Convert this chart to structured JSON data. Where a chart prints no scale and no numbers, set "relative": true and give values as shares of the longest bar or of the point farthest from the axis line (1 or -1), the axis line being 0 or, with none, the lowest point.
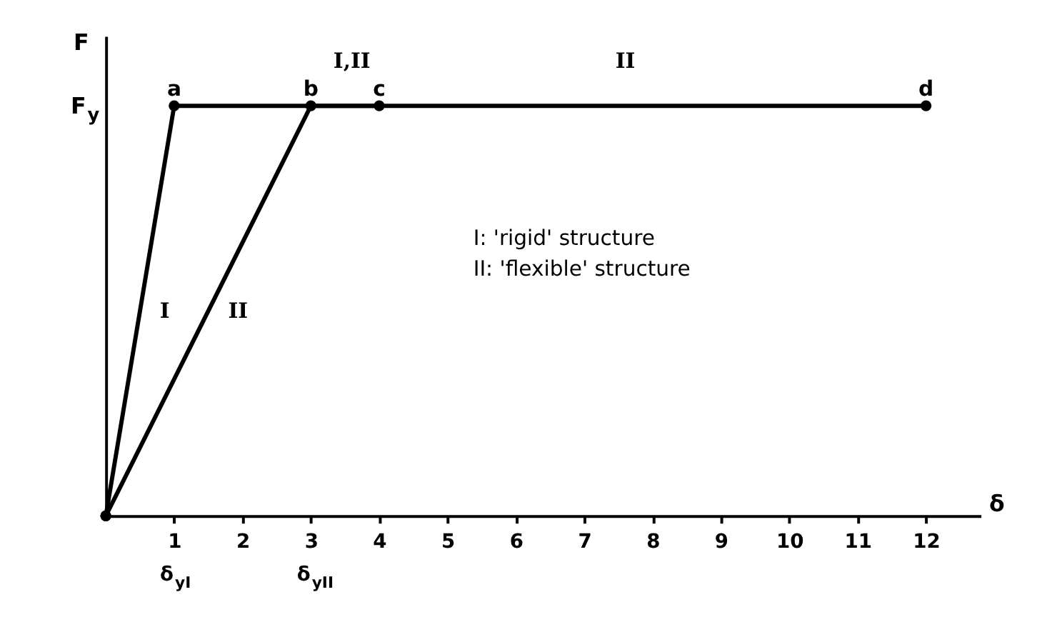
{
  "chart_data": {
    "type": "line",
    "relative": true,
    "xlabel": "δ",
    "ylabel": "F",
    "xlim": [
      0,
      12.8
    ],
    "xticks": [
      1,
      2,
      3,
      4,
      5,
      6,
      7,
      8,
      9,
      10,
      11,
      12
    ],
    "marker": "circle",
    "line_style": "solid",
    "series": [
      {
        "name": "I",
        "color": "#000000",
        "x": [
          0,
          1,
          4
        ],
        "values": [
          0,
          1,
          1
        ]
      },
      {
        "name": "II",
        "color": "#000000",
        "x": [
          0,
          3,
          12
        ],
        "values": [
          0,
          1,
          1
        ]
      }
    ],
    "annotations": [
      "F$_{y}$",
      {
        "text": "a",
        "x": 1,
        "y": 1
      },
      {
        "text": "b",
        "x": 3,
        "y": 1
      },
      {
        "text": "c",
        "x": 4,
        "y": 1
      },
      {
        "text": "d",
        "x": 12,
        "y": 1
      },
      {
        "text": "I,II",
        "x": 3.6,
        "y": 1
      },
      {
        "text": "II",
        "x": 7.6,
        "y": 1
      },
      "δ$_{yI}$",
      "δ$_{yII}$",
      "I: 'rigid' structure",
      "II: 'flexible' structure"
    ]
  }
}
